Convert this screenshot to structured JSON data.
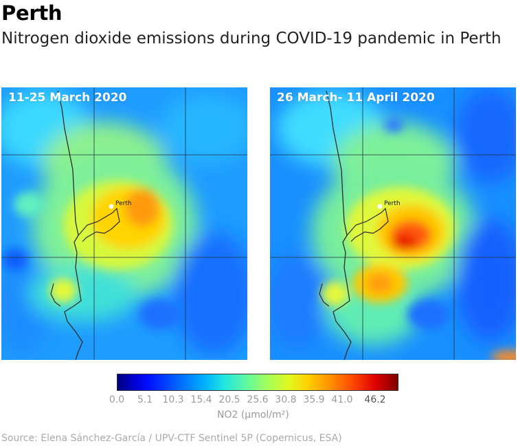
{
  "title": "Perth",
  "subtitle": "Nitrogen dioxide emissions during COVID-19 pandemic in Perth",
  "panels": [
    {
      "label": "11-25 March 2020",
      "city": "Perth"
    },
    {
      "label": "26 March- 11 April 2020",
      "city": "Perth"
    }
  ],
  "colorbar": {
    "ticks": [
      "0.0",
      "5.1",
      "10.3",
      "15.4",
      "20.5",
      "25.6",
      "30.8",
      "35.9",
      "41.0",
      "46.2"
    ],
    "unit_label": "NO2 (μmol/m²)",
    "min_color": "#00007f",
    "max_color": "#7f0000"
  },
  "source": "Source: Elena Sánchez-García / UPV-CTF Sentinel 5P (Copernicus, ESA)"
}
